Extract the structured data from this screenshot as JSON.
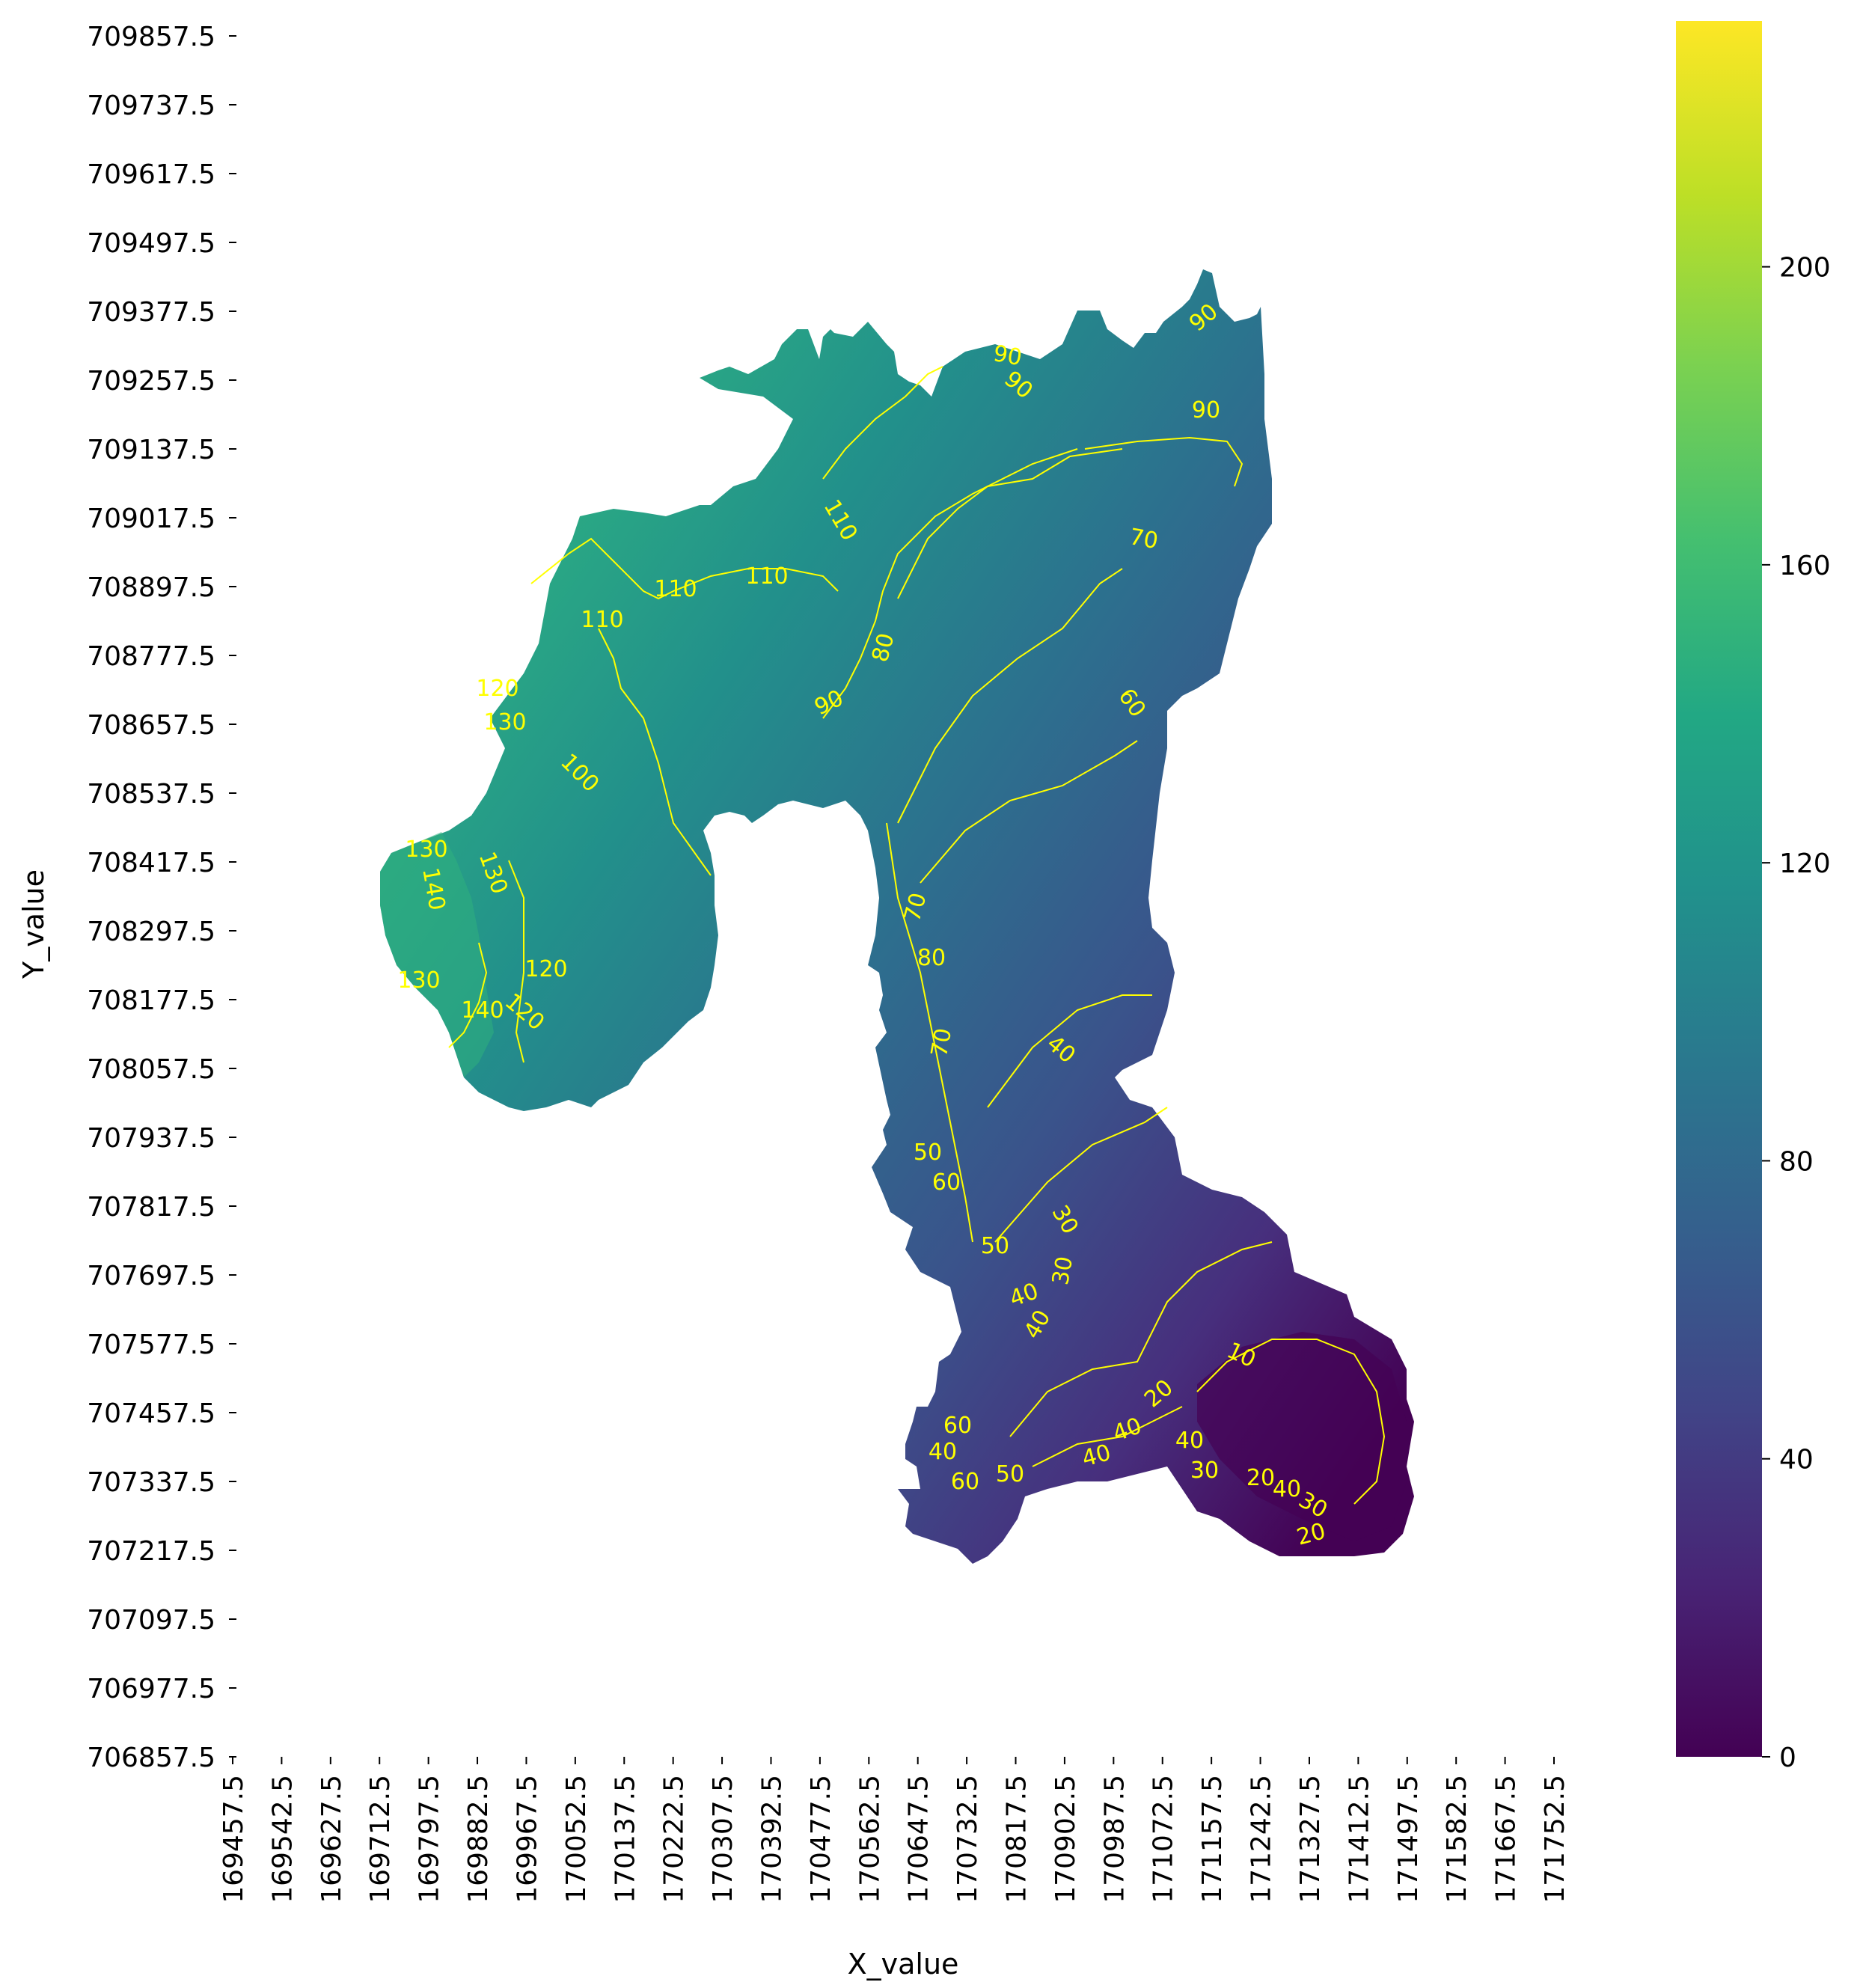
{
  "chart_data": {
    "type": "heatmap",
    "title": "",
    "xlabel": "X_value",
    "ylabel": "Y_value",
    "colormap": "viridis",
    "colorbar": {
      "min": 0,
      "max": 233,
      "ticks": [
        0,
        40,
        80,
        120,
        160,
        200
      ]
    },
    "x_ticks": [
      "169457.5",
      "169542.5",
      "169627.5",
      "169712.5",
      "169797.5",
      "169882.5",
      "169967.5",
      "170052.5",
      "170137.5",
      "170222.5",
      "170307.5",
      "170392.5",
      "170477.5",
      "170562.5",
      "170647.5",
      "170732.5",
      "170817.5",
      "170902.5",
      "170987.5",
      "171072.5",
      "171157.5",
      "171242.5",
      "171327.5",
      "171412.5",
      "171497.5",
      "171582.5",
      "171667.5",
      "171752.5"
    ],
    "y_ticks": [
      "709857.5",
      "709737.5",
      "709617.5",
      "709497.5",
      "709377.5",
      "709257.5",
      "709137.5",
      "709017.5",
      "708897.5",
      "708777.5",
      "708657.5",
      "708537.5",
      "708417.5",
      "708297.5",
      "708177.5",
      "708057.5",
      "707937.5",
      "707817.5",
      "707697.5",
      "707577.5",
      "707457.5",
      "707337.5",
      "707217.5",
      "707097.5",
      "706977.5",
      "706857.5"
    ],
    "contour_levels": [
      10,
      20,
      30,
      40,
      50,
      60,
      70,
      80,
      90,
      100,
      110,
      120,
      130,
      140
    ],
    "contour_labels": [
      {
        "text": "90"
      },
      {
        "text": "90"
      },
      {
        "text": "90"
      },
      {
        "text": "90"
      },
      {
        "text": "110"
      },
      {
        "text": "110"
      },
      {
        "text": "110"
      },
      {
        "text": "110"
      },
      {
        "text": "70"
      },
      {
        "text": "80"
      },
      {
        "text": "90"
      },
      {
        "text": "60"
      },
      {
        "text": "120"
      },
      {
        "text": "130"
      },
      {
        "text": "100"
      },
      {
        "text": "130"
      },
      {
        "text": "140"
      },
      {
        "text": "130"
      },
      {
        "text": "120"
      },
      {
        "text": "140"
      },
      {
        "text": "120"
      },
      {
        "text": "130"
      },
      {
        "text": "70"
      },
      {
        "text": "80"
      },
      {
        "text": "40"
      },
      {
        "text": "70"
      },
      {
        "text": "50"
      },
      {
        "text": "60"
      },
      {
        "text": "30"
      },
      {
        "text": "30"
      },
      {
        "text": "50"
      },
      {
        "text": "40"
      },
      {
        "text": "40"
      },
      {
        "text": "10"
      },
      {
        "text": "20"
      },
      {
        "text": "40"
      },
      {
        "text": "40"
      },
      {
        "text": "40"
      },
      {
        "text": "60"
      },
      {
        "text": "40"
      },
      {
        "text": "50"
      },
      {
        "text": "60"
      },
      {
        "text": "30"
      },
      {
        "text": "40"
      },
      {
        "text": "20"
      },
      {
        "text": "30"
      },
      {
        "text": "20"
      }
    ]
  }
}
